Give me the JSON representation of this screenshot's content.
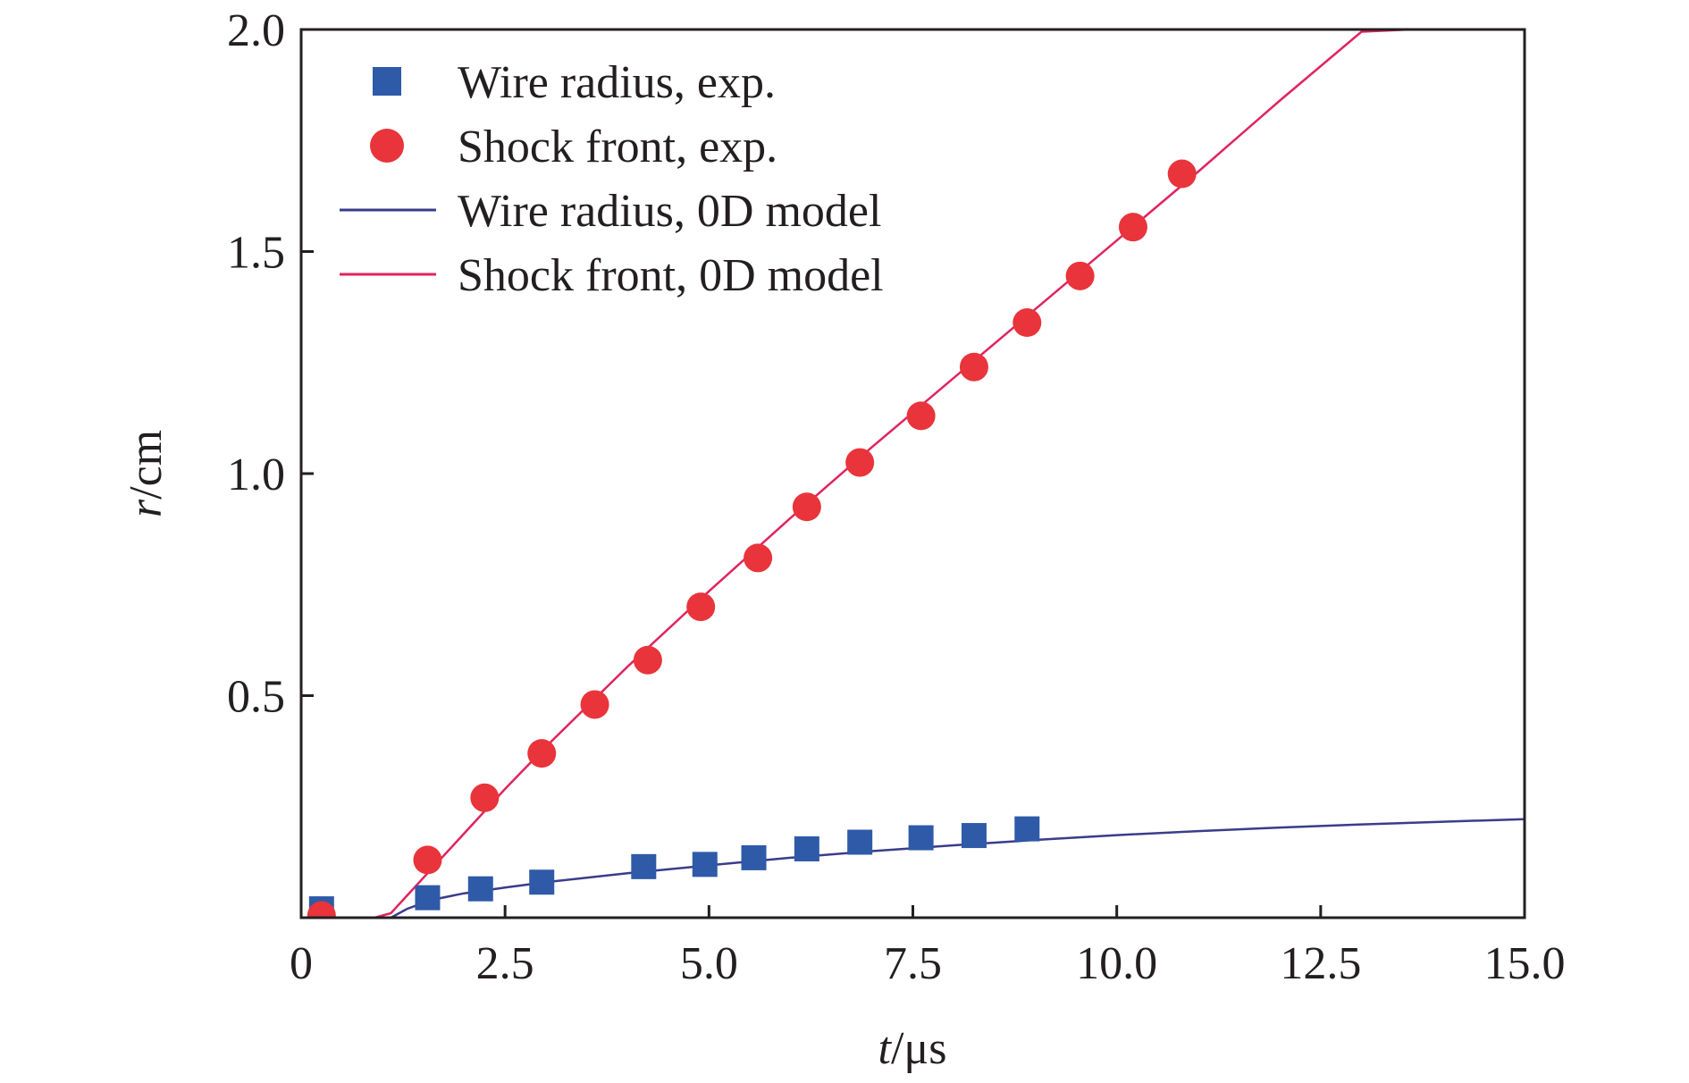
{
  "chart_data": {
    "type": "scatter",
    "xlabel": {
      "var": "t",
      "unit": "/μs"
    },
    "ylabel": {
      "var": "r",
      "unit": "/cm"
    },
    "xlim": [
      0,
      15.0
    ],
    "ylim": [
      0,
      2.0
    ],
    "x_ticks": [
      {
        "value": 0,
        "label": "0"
      },
      {
        "value": 2.5,
        "label": "2.5"
      },
      {
        "value": 5.0,
        "label": "5.0"
      },
      {
        "value": 7.5,
        "label": "7.5"
      },
      {
        "value": 10.0,
        "label": "10.0"
      },
      {
        "value": 12.5,
        "label": "12.5"
      },
      {
        "value": 15.0,
        "label": "15.0"
      }
    ],
    "y_ticks": [
      {
        "value": 0.5,
        "label": "0.5"
      },
      {
        "value": 1.0,
        "label": "1.0"
      },
      {
        "value": 1.5,
        "label": "1.5"
      },
      {
        "value": 2.0,
        "label": "2.0"
      }
    ],
    "grid": false,
    "legend_position": "top-left",
    "series": [
      {
        "name": "Wire radius, exp.",
        "kind": "scatter",
        "marker": "square",
        "color": "#2e5aa8",
        "x": [
          0.25,
          1.55,
          2.2,
          2.95,
          4.2,
          4.95,
          5.55,
          6.2,
          6.85,
          7.6,
          8.25,
          8.9
        ],
        "y": [
          0.02,
          0.045,
          0.065,
          0.08,
          0.115,
          0.12,
          0.135,
          0.155,
          0.17,
          0.18,
          0.185,
          0.2
        ]
      },
      {
        "name": "Shock front, exp.",
        "kind": "scatter",
        "marker": "circle",
        "color": "#e8343a",
        "x": [
          0.25,
          1.55,
          2.25,
          2.95,
          3.6,
          4.25,
          4.9,
          5.6,
          6.2,
          6.85,
          7.6,
          8.25,
          8.9,
          9.55,
          10.2,
          10.8
        ],
        "y": [
          0.005,
          0.13,
          0.27,
          0.37,
          0.48,
          0.58,
          0.7,
          0.81,
          0.925,
          1.025,
          1.13,
          1.24,
          1.34,
          1.445,
          1.555,
          1.675
        ]
      },
      {
        "name": "Wire radius, 0D model",
        "kind": "line",
        "color": "#3a3c8c",
        "x": [
          0,
          0.5,
          1.0,
          1.1,
          1.3,
          1.6,
          2.0,
          2.5,
          3.0,
          4.0,
          5.0,
          6.0,
          7.0,
          8.0,
          9.0,
          10.0,
          11.0,
          12.0,
          13.0,
          14.0,
          15.0
        ],
        "y": [
          0.0,
          0.0,
          0.0,
          0.0,
          0.02,
          0.04,
          0.055,
          0.068,
          0.08,
          0.1,
          0.118,
          0.135,
          0.15,
          0.163,
          0.175,
          0.186,
          0.195,
          0.203,
          0.21,
          0.216,
          0.222
        ]
      },
      {
        "name": "Shock front, 0D model",
        "kind": "line",
        "color": "#e0245e",
        "x": [
          0,
          0.5,
          0.9,
          1.1,
          1.3,
          1.6,
          2.0,
          2.5,
          3.0,
          4.0,
          5.0,
          6.0,
          7.0,
          8.0,
          9.0,
          10.0,
          11.0,
          12.0,
          13.0,
          13.6
        ],
        "y": [
          0.0,
          0.0,
          0.0,
          0.01,
          0.05,
          0.11,
          0.19,
          0.29,
          0.385,
          0.565,
          0.735,
          0.9,
          1.06,
          1.215,
          1.37,
          1.525,
          1.68,
          1.84,
          1.995,
          2.0
        ]
      }
    ]
  }
}
